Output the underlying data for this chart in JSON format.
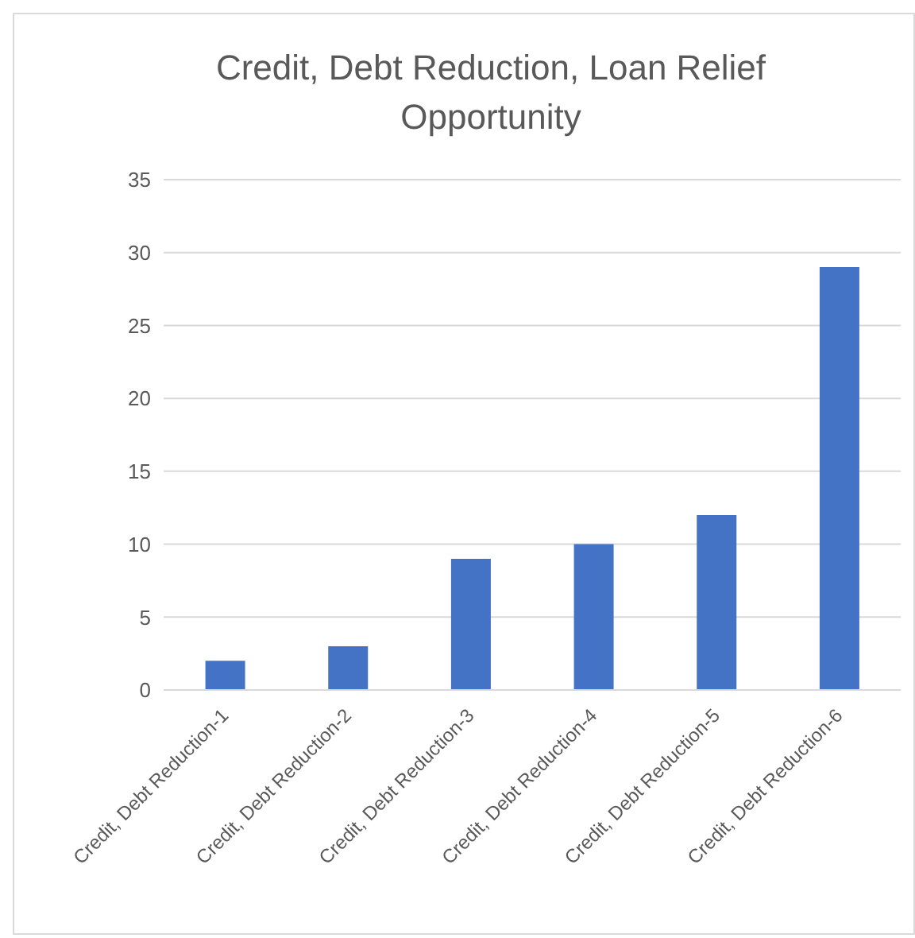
{
  "chart_data": {
    "type": "bar",
    "title": "Credit, Debt Reduction, Loan Relief Opportunity",
    "categories": [
      "Credit, Debt Reduction-1",
      "Credit, Debt Reduction-2",
      "Credit, Debt Reduction-3",
      "Credit, Debt Reduction-4",
      "Credit, Debt Reduction-5",
      "Credit, Debt Reduction-6"
    ],
    "values": [
      2,
      3,
      9,
      10,
      12,
      29
    ],
    "color": "#4472c4",
    "ylim": [
      0,
      35
    ],
    "yticks": [
      0,
      5,
      10,
      15,
      20,
      25,
      30,
      35
    ],
    "grid": "y"
  }
}
